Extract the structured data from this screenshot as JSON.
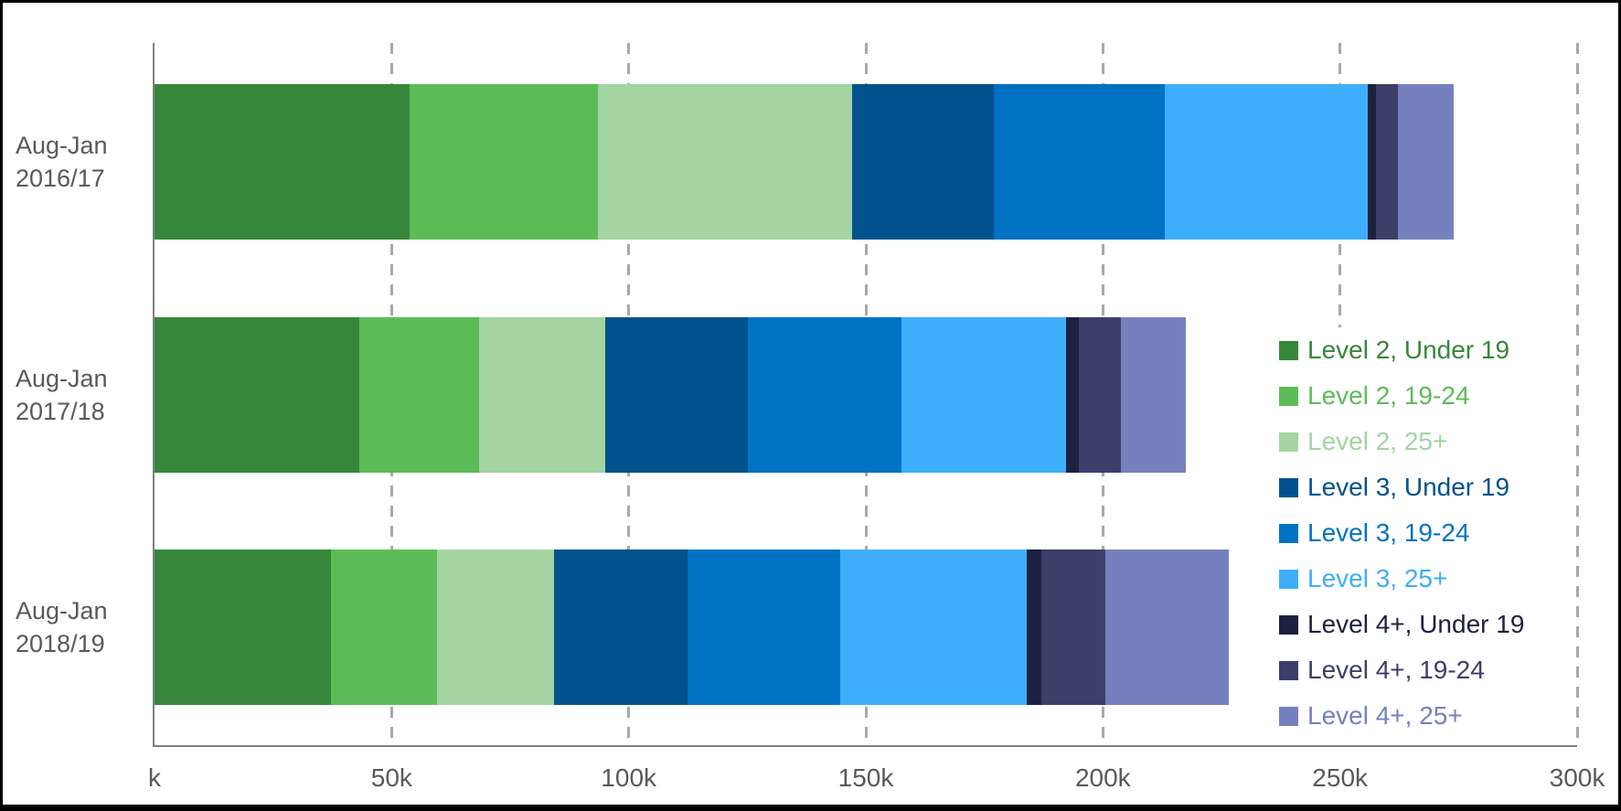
{
  "chart_data": {
    "type": "bar",
    "orientation": "horizontal",
    "stacked": true,
    "title": "",
    "xlabel": "",
    "ylabel": "",
    "xlim": [
      0,
      300
    ],
    "x_unit": "k",
    "gridlines": "vertical-dashed-50k",
    "legend_position": "right",
    "categories": [
      {
        "line1": "Aug-Jan",
        "line2": "2016/17"
      },
      {
        "line1": "Aug-Jan",
        "line2": "2017/18"
      },
      {
        "line1": "Aug-Jan",
        "line2": "2018/19"
      }
    ],
    "x_ticks": [
      {
        "label": "k",
        "value": 0
      },
      {
        "label": "50k",
        "value": 50
      },
      {
        "label": "100k",
        "value": 100
      },
      {
        "label": "150k",
        "value": 150
      },
      {
        "label": "200k",
        "value": 200
      },
      {
        "label": "250k",
        "value": 250
      },
      {
        "label": "300k",
        "value": 300
      }
    ],
    "series": [
      {
        "name": "Level 2, Under 19",
        "color": "#37873B",
        "values": [
          53.8,
          43.1,
          37.2
        ]
      },
      {
        "name": "Level 2, 19-24",
        "color": "#5CBC57",
        "values": [
          39.8,
          25.4,
          22.3
        ]
      },
      {
        "name": "Level 2, 25+",
        "color": "#A4D4A1",
        "values": [
          53.5,
          26.5,
          24.8
        ]
      },
      {
        "name": "Level 3, Under 19",
        "color": "#00528C",
        "values": [
          30.0,
          30.2,
          28.2
        ]
      },
      {
        "name": "Level 3, 19-24",
        "color": "#0072C3",
        "values": [
          36.0,
          32.3,
          32.2
        ]
      },
      {
        "name": "Level 3, 25+",
        "color": "#3FAEFA",
        "values": [
          42.7,
          34.7,
          39.2
        ]
      },
      {
        "name": "Level 4+, Under 19",
        "color": "#1C2140",
        "values": [
          1.8,
          2.8,
          3.2
        ]
      },
      {
        "name": "Level 4+, 19-24",
        "color": "#3B3F69",
        "values": [
          4.6,
          8.8,
          13.4
        ]
      },
      {
        "name": "Level 4+, 25+",
        "color": "#7780BE",
        "values": [
          11.8,
          13.7,
          26.1
        ]
      }
    ]
  },
  "colors": {
    "axis_line": "#808080",
    "gridline": "#A8A8A8",
    "axis_text": "#595959",
    "plot_background": "#FFFFFF",
    "outer_border": "#000000"
  }
}
